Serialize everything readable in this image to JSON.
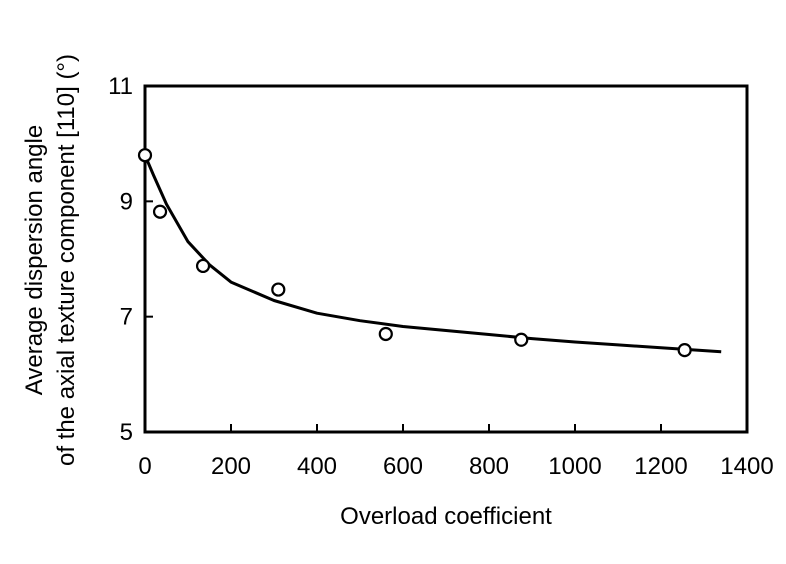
{
  "chart_data": {
    "type": "scatter",
    "xlabel": "Overload coefficient",
    "ylabel_line1": "Average dispersion angle",
    "ylabel_line2": "of the axial texture component [110] (°)",
    "xlim": [
      0,
      1400
    ],
    "ylim": [
      5,
      11
    ],
    "xticks": [
      0,
      200,
      400,
      600,
      800,
      1000,
      1200,
      1400
    ],
    "yticks": [
      5,
      7,
      9,
      11
    ],
    "grid": false,
    "legend": "none",
    "points": [
      {
        "x": 0,
        "y": 9.8
      },
      {
        "x": 35,
        "y": 8.82
      },
      {
        "x": 135,
        "y": 7.88
      },
      {
        "x": 310,
        "y": 7.47
      },
      {
        "x": 560,
        "y": 6.7
      },
      {
        "x": 875,
        "y": 6.6
      },
      {
        "x": 1255,
        "y": 6.42
      }
    ],
    "fit_curve": [
      {
        "x": 0,
        "y": 9.8
      },
      {
        "x": 20,
        "y": 9.45
      },
      {
        "x": 50,
        "y": 8.95
      },
      {
        "x": 100,
        "y": 8.3
      },
      {
        "x": 150,
        "y": 7.9
      },
      {
        "x": 200,
        "y": 7.6
      },
      {
        "x": 300,
        "y": 7.28
      },
      {
        "x": 400,
        "y": 7.06
      },
      {
        "x": 500,
        "y": 6.93
      },
      {
        "x": 600,
        "y": 6.83
      },
      {
        "x": 700,
        "y": 6.76
      },
      {
        "x": 800,
        "y": 6.69
      },
      {
        "x": 900,
        "y": 6.62
      },
      {
        "x": 1000,
        "y": 6.56
      },
      {
        "x": 1100,
        "y": 6.51
      },
      {
        "x": 1200,
        "y": 6.46
      },
      {
        "x": 1340,
        "y": 6.39
      }
    ],
    "colors": {
      "axis": "#000000",
      "marker_fill": "#ffffff",
      "line": "#000000"
    }
  }
}
